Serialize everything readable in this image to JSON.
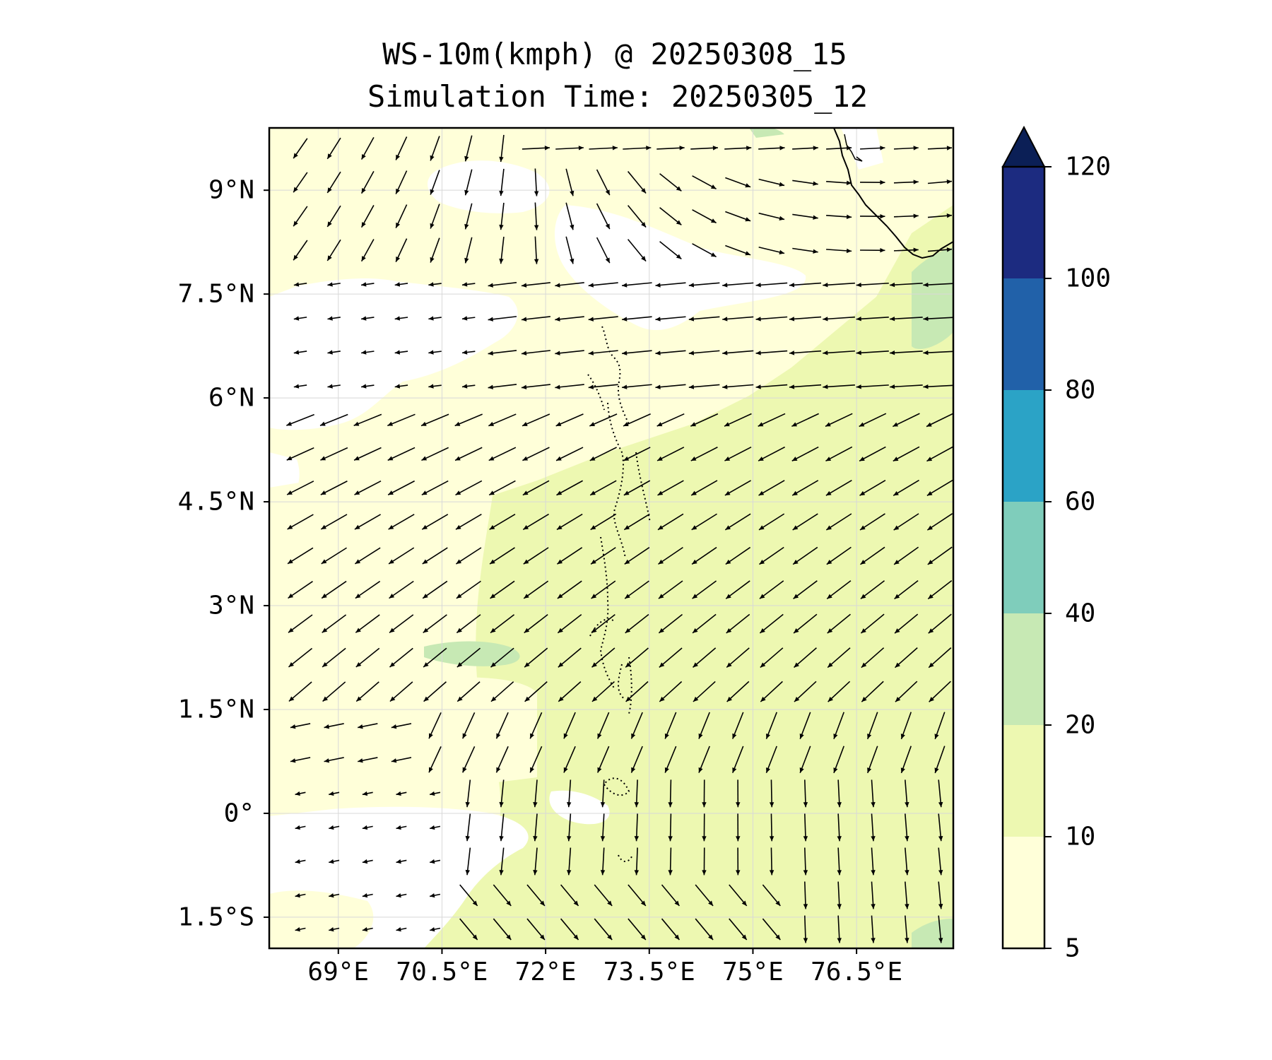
{
  "title": {
    "line1": "WS-10m(kmph) @ 20250308_15",
    "line2": "Simulation Time: 20250305_12"
  },
  "map": {
    "lat_labels": [
      {
        "value": 9,
        "label": "9°N"
      },
      {
        "value": 7.5,
        "label": "7.5°N"
      },
      {
        "value": 6,
        "label": "6°N"
      },
      {
        "value": 4.5,
        "label": "4.5°N"
      },
      {
        "value": 3,
        "label": "3°N"
      },
      {
        "value": 1.5,
        "label": "1.5°N"
      },
      {
        "value": 0,
        "label": "0°"
      },
      {
        "value": -1.5,
        "label": "1.5°S"
      }
    ],
    "lon_labels": [
      {
        "value": 69,
        "label": "69°E"
      },
      {
        "value": 70.5,
        "label": "70.5°E"
      },
      {
        "value": 72,
        "label": "72°E"
      },
      {
        "value": 73.5,
        "label": "73.5°E"
      },
      {
        "value": 75,
        "label": "75°E"
      },
      {
        "value": 76.5,
        "label": "76.5°E"
      }
    ],
    "extent": {
      "lon": [
        68,
        77.9
      ],
      "lat": [
        -1.95,
        9.9
      ]
    },
    "gridlines": true,
    "vector_field": "wind-10m-arrows"
  },
  "colorbar": {
    "levels": [
      5,
      10,
      20,
      40,
      60,
      80,
      100,
      120
    ],
    "labels": [
      "5",
      "10",
      "20",
      "40",
      "60",
      "80",
      "100",
      "120"
    ],
    "colors": [
      "#ffffd9",
      "#edf8b1",
      "#c7e9b4",
      "#7fcdbb",
      "#2ba3c6",
      "#2161a9",
      "#1c2b80"
    ],
    "extend_color": "#0b1f56",
    "extend": "max"
  },
  "colors": {
    "background": "#ffffff",
    "no_fill": "#ffffff",
    "coast": "#000000",
    "arrow": "#000000"
  }
}
